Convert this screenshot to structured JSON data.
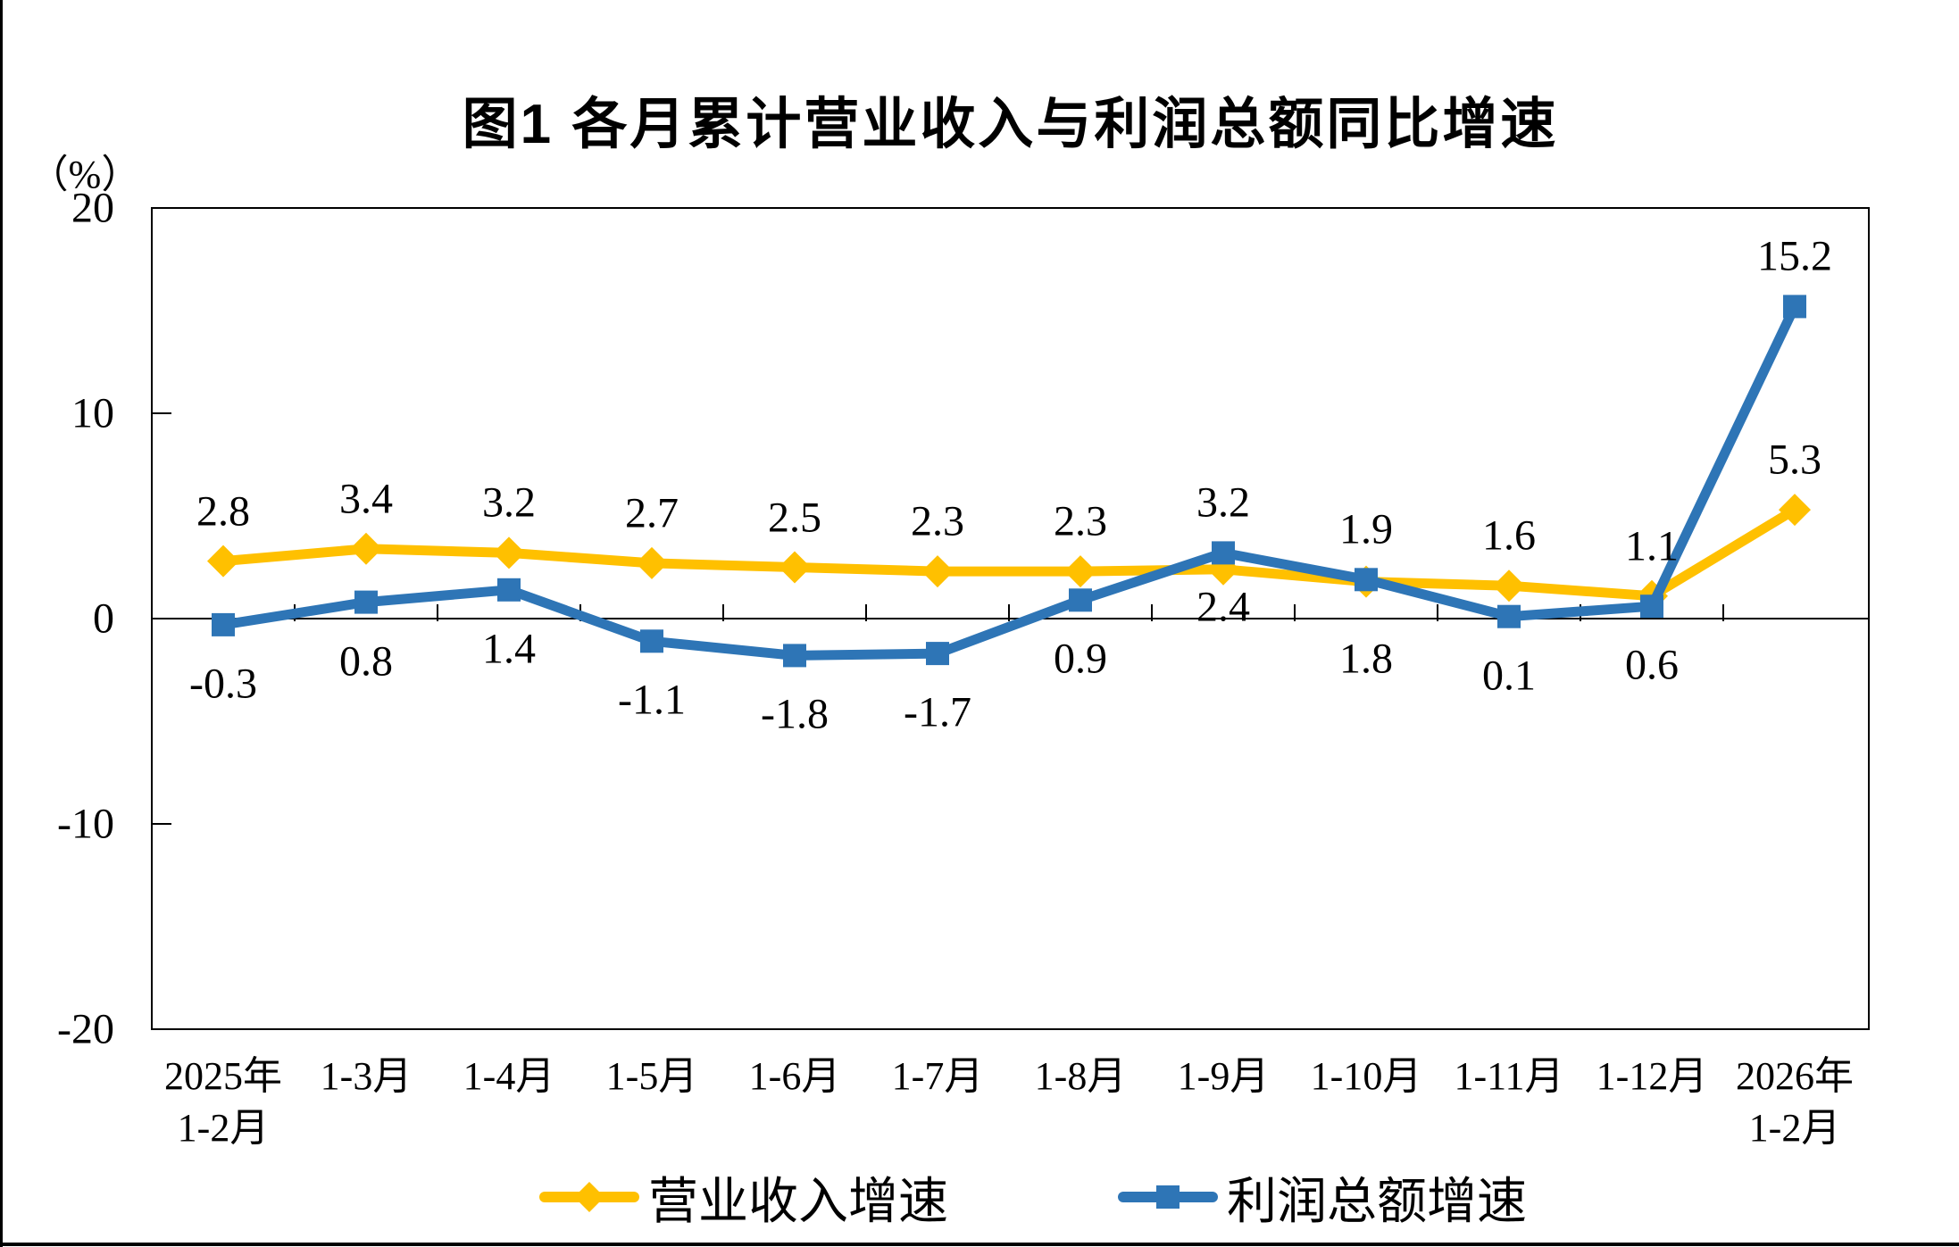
{
  "page": {
    "background": "#ffffff",
    "frame_color": "#000000"
  },
  "chart_data": {
    "type": "line",
    "title": "图1 各月累计营业收入与利润总额同比增速",
    "ylabel": "（%）",
    "ylim": [
      -20,
      20
    ],
    "ytick_step": 10,
    "grid": false,
    "legend_position": "bottom",
    "axis_color": "#000000",
    "categories": [
      [
        "2025年",
        "1-2月"
      ],
      [
        "1-3月"
      ],
      [
        "1-4月"
      ],
      [
        "1-5月"
      ],
      [
        "1-6月"
      ],
      [
        "1-7月"
      ],
      [
        "1-8月"
      ],
      [
        "1-9月"
      ],
      [
        "1-10月"
      ],
      [
        "1-11月"
      ],
      [
        "1-12月"
      ],
      [
        "2026年",
        "1-2月"
      ]
    ],
    "series": [
      {
        "name": "营业收入增速",
        "marker": "diamond",
        "color": "#FFC000",
        "values": [
          2.8,
          3.4,
          3.2,
          2.7,
          2.5,
          2.3,
          2.3,
          2.4,
          1.8,
          1.6,
          1.1,
          5.3
        ],
        "label_dy": [
          -56,
          -56,
          -56,
          -56,
          -56,
          -56,
          -56,
          42,
          86,
          -56,
          -56,
          -56
        ]
      },
      {
        "name": "利润总额增速",
        "marker": "square",
        "color": "#2E75B6",
        "values": [
          -0.3,
          0.8,
          1.4,
          -1.1,
          -1.8,
          -1.7,
          0.9,
          3.2,
          1.9,
          0.1,
          0.6,
          15.2
        ],
        "label_dy": [
          66,
          66,
          66,
          66,
          66,
          66,
          66,
          -56,
          -56,
          66,
          66,
          -56
        ]
      }
    ]
  }
}
